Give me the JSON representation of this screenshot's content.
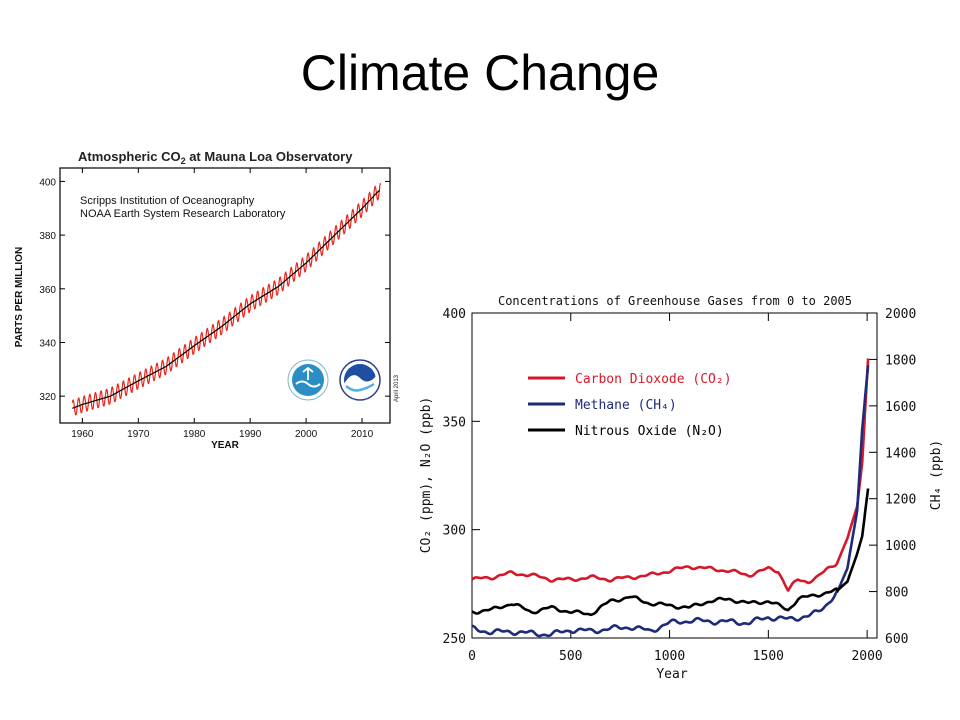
{
  "slide": {
    "title": "Climate Change"
  },
  "chart_data": [
    {
      "type": "line",
      "title": "Atmospheric CO",
      "title_sub": "2",
      "title_suffix": " at Mauna Loa Observatory",
      "sources": [
        "Scripps Institution of Oceanography",
        "NOAA Earth System Research Laboratory"
      ],
      "xlabel": "YEAR",
      "ylabel": "PARTS PER MILLION",
      "date_note": "April 2013",
      "xlim": [
        1956,
        2015
      ],
      "ylim": [
        310,
        405
      ],
      "xticks": [
        1960,
        1970,
        1980,
        1990,
        2000,
        2010
      ],
      "yticks": [
        320,
        340,
        360,
        380,
        400
      ],
      "grid": false,
      "series": [
        {
          "name": "",
          "color": "#e8251c",
          "kind": "monthly_seasonal",
          "seasonal_amplitude_ppm": 3
        },
        {
          "name": "",
          "color": "#000000",
          "kind": "annual_trend",
          "x": [
            1958,
            1960,
            1965,
            1970,
            1975,
            1980,
            1985,
            1990,
            1995,
            2000,
            2005,
            2010,
            2013
          ],
          "y": [
            315.3,
            316.9,
            320.0,
            325.7,
            331.1,
            338.8,
            346.1,
            354.4,
            360.8,
            369.6,
            379.8,
            389.9,
            396.5
          ]
        }
      ]
    },
    {
      "type": "line",
      "title": "Concentrations of Greenhouse Gases from 0 to 2005",
      "xlabel": "Year",
      "ylabel_left": "CO₂ (ppm), N₂O (ppb)",
      "ylabel_right": "CH₄ (ppb)",
      "xlim": [
        0,
        2050
      ],
      "ylim_left": [
        250,
        400
      ],
      "ylim_right": [
        600,
        2000
      ],
      "xticks": [
        0,
        500,
        1000,
        1500,
        2000
      ],
      "yticks_left": [
        250,
        300,
        350,
        400
      ],
      "yticks_right": [
        600,
        800,
        1000,
        1200,
        1400,
        1600,
        1800,
        2000
      ],
      "legend_position": "upper-left",
      "grid": false,
      "series": [
        {
          "name": "Carbon Dioxode (CO₂)",
          "color": "#d7182a",
          "axis": "left",
          "x": [
            0,
            100,
            200,
            300,
            400,
            500,
            600,
            700,
            800,
            900,
            1000,
            1100,
            1200,
            1300,
            1400,
            1500,
            1550,
            1600,
            1650,
            1700,
            1750,
            1800,
            1850,
            1900,
            1950,
            1975,
            2005
          ],
          "y": [
            277,
            278,
            280,
            279,
            277,
            277,
            278,
            277,
            278,
            279,
            281,
            283,
            282,
            281,
            279,
            282,
            281,
            272,
            277,
            276,
            278,
            282,
            285,
            296,
            311,
            331,
            379
          ]
        },
        {
          "name": "Methane (CH₄)",
          "color": "#1f2a7a",
          "axis": "right",
          "x": [
            0,
            100,
            200,
            300,
            400,
            500,
            600,
            700,
            800,
            900,
            1000,
            1100,
            1200,
            1300,
            1400,
            1500,
            1600,
            1700,
            1750,
            1800,
            1850,
            1900,
            1950,
            1975,
            2005
          ],
          "y": [
            640,
            625,
            628,
            620,
            615,
            635,
            630,
            640,
            648,
            630,
            665,
            675,
            672,
            670,
            665,
            690,
            680,
            695,
            710,
            750,
            800,
            900,
            1150,
            1500,
            1775
          ]
        },
        {
          "name": "Nitrous Oxide (N₂O)",
          "color": "#000000",
          "axis": "left",
          "x": [
            0,
            100,
            200,
            300,
            400,
            500,
            600,
            700,
            800,
            900,
            1000,
            1100,
            1200,
            1300,
            1400,
            1500,
            1600,
            1650,
            1700,
            1750,
            1800,
            1850,
            1900,
            1950,
            1975,
            2005
          ],
          "y": [
            262,
            263,
            266,
            262,
            264,
            262,
            261,
            267,
            269,
            266,
            265,
            264,
            267,
            268,
            266,
            267,
            263,
            268,
            269,
            270,
            271,
            272,
            276,
            289,
            297,
            319
          ]
        }
      ]
    }
  ]
}
